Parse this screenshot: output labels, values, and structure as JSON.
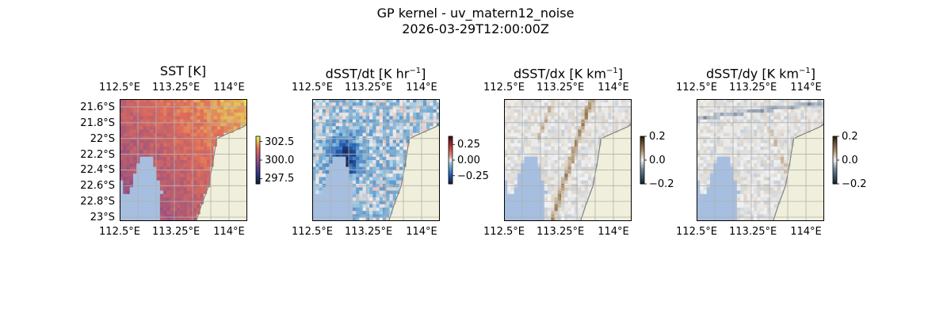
{
  "figure": {
    "title": "GP kernel - uv_matern12_noise",
    "subtitle": "2026-03-29T12:00:00Z"
  },
  "colors": {
    "land": "#efefdb",
    "water_mask": "#a6bfe0",
    "gridline": "#b0b0b0",
    "coastline": "#808080"
  },
  "chart_data": [
    {
      "type": "heatmap",
      "title": "SST [K]",
      "field": "sst",
      "colormap": "thermal",
      "x_tick_labels": [
        "112.5°E",
        "113.25°E",
        "114°E"
      ],
      "y_tick_labels": [
        "21.6°S",
        "21.8°S",
        "22°S",
        "22.2°S",
        "22.4°S",
        "22.6°S",
        "22.8°S",
        "23°S"
      ],
      "xlim": [
        112.5,
        114.25
      ],
      "ylim": [
        -23.05,
        -21.5
      ],
      "colorbar": {
        "min": 296.8,
        "max": 303.2,
        "ticks": [
          "302.5",
          "300.0",
          "297.5"
        ],
        "tick_values": [
          302.5,
          300.0,
          297.5
        ]
      },
      "grid": true
    },
    {
      "type": "heatmap",
      "title": "dSST/dt [K hr",
      "title_sup": "−1",
      "title_end": "]",
      "field": "dsst_dt",
      "colormap": "balance",
      "x_tick_labels": [
        "112.5°E",
        "113.25°E",
        "114°E"
      ],
      "xlim": [
        112.5,
        114.25
      ],
      "ylim": [
        -23.05,
        -21.5
      ],
      "colorbar": {
        "min": -0.38,
        "max": 0.38,
        "ticks": [
          "0.25",
          "0.00",
          "−0.25"
        ],
        "tick_values": [
          0.25,
          0.0,
          -0.25
        ]
      },
      "grid": true
    },
    {
      "type": "heatmap",
      "title": "dSST/dx [K km",
      "title_sup": "−1",
      "title_end": "]",
      "field": "dsst_dx",
      "colormap": "diff",
      "x_tick_labels": [
        "112.5°E",
        "113.25°E",
        "114°E"
      ],
      "xlim": [
        112.5,
        114.25
      ],
      "ylim": [
        -23.05,
        -21.5
      ],
      "colorbar": {
        "min": -0.2,
        "max": 0.2,
        "ticks": [
          "0.2",
          "0.0",
          "−0.2"
        ],
        "tick_values": [
          0.2,
          0.0,
          -0.2
        ]
      },
      "grid": true
    },
    {
      "type": "heatmap",
      "title": "dSST/dy [K km",
      "title_sup": "−1",
      "title_end": "]",
      "field": "dsst_dy",
      "colormap": "diff",
      "x_tick_labels": [
        "112.5°E",
        "113.25°E",
        "114°E"
      ],
      "xlim": [
        112.5,
        114.25
      ],
      "ylim": [
        -23.05,
        -21.5
      ],
      "colorbar": {
        "min": -0.2,
        "max": 0.2,
        "ticks": [
          "0.2",
          "0.0",
          "−0.2"
        ],
        "tick_values": [
          0.2,
          0.0,
          -0.2
        ]
      },
      "grid": true
    }
  ]
}
